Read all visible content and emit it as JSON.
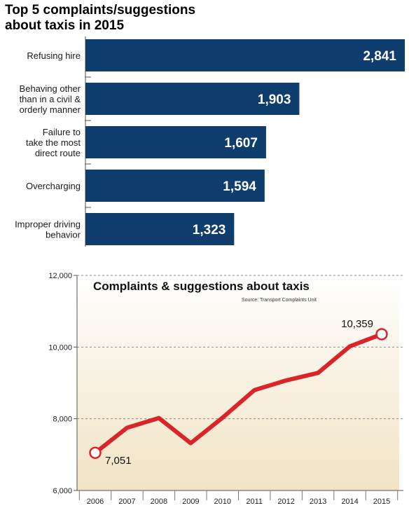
{
  "colors": {
    "bar": "#0f3d6e",
    "line": "#d9252a",
    "marker_fill": "#ffffff",
    "plot_gradient_top": "#ffffff",
    "plot_gradient_bottom": "#f1e3c4"
  },
  "chart_data": [
    {
      "type": "bar",
      "orientation": "horizontal",
      "title": "Top 5 complaints/suggestions\nabout taxis in 2015",
      "categories": [
        "Refusing hire",
        "Behaving other\nthan in a civil &\norderly manner",
        "Failure to\ntake the most\ndirect route",
        "Overcharging",
        "Improper driving\nbehavior"
      ],
      "values": [
        2841,
        1903,
        1607,
        1594,
        1323
      ],
      "value_labels": [
        "2,841",
        "1,903",
        "1,607",
        "1,594",
        "1,323"
      ],
      "xlim": [
        0,
        2841
      ]
    },
    {
      "type": "line",
      "title": "Complaints & suggestions about taxis",
      "source": "Source: Transport Complaints Unit",
      "x": [
        "2006",
        "2007",
        "2008",
        "2009",
        "2010",
        "2011",
        "2012",
        "2013",
        "2014",
        "2015"
      ],
      "y": [
        7051,
        7750,
        8020,
        7320,
        8030,
        8800,
        9070,
        9280,
        10020,
        10359
      ],
      "ylim": [
        6000,
        12000
      ],
      "yticks": [
        6000,
        8000,
        10000,
        12000
      ],
      "ytick_labels": [
        "6,000",
        "8,000",
        "10,000",
        "12,000"
      ],
      "annotations": [
        {
          "index": 0,
          "text": "7,051"
        },
        {
          "index": 9,
          "text": "10,359"
        }
      ],
      "grid": "dashed-horizontal"
    }
  ]
}
